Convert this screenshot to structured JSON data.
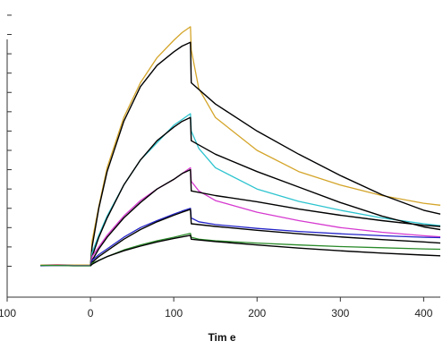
{
  "chart_data": {
    "type": "line",
    "title": "",
    "xlabel": "Tim e",
    "ylabel": "",
    "xlim": [
      -100,
      420
    ],
    "ylim": [
      -8,
      68
    ],
    "x_ticks": [
      -100,
      0,
      100,
      200,
      300,
      400
    ],
    "x_tick_labels": [
      "100",
      "0",
      "100",
      "200",
      "300",
      "400"
    ],
    "y_ticks": [
      0,
      5,
      10,
      15,
      20,
      25,
      30,
      35,
      40,
      45,
      50,
      55,
      60,
      65
    ],
    "grid": false,
    "legend": "none",
    "association_end": 120,
    "series": [
      {
        "color": "#d4a52a",
        "x": [
          -60,
          -40,
          -20,
          0,
          2,
          10,
          20,
          40,
          60,
          80,
          100,
          110,
          120,
          121,
          130,
          150,
          200,
          250,
          300,
          350,
          400,
          420
        ],
        "y": [
          0.3,
          0.4,
          0.3,
          0.3,
          6.5,
          15.5,
          25.5,
          38.5,
          47.5,
          54.0,
          58.5,
          60.5,
          62.0,
          56.0,
          46.0,
          38.5,
          30.0,
          24.5,
          21.0,
          18.3,
          16.3,
          15.8
        ]
      },
      {
        "color": "#000000",
        "x": [
          0,
          2,
          10,
          20,
          40,
          60,
          80,
          100,
          110,
          120,
          121,
          150,
          200,
          250,
          300,
          350,
          400,
          420
        ],
        "y": [
          0.3,
          5.0,
          15.0,
          24.5,
          37.5,
          46.5,
          52.0,
          55.5,
          57.0,
          58.0,
          47.5,
          42.0,
          35.0,
          29.0,
          23.5,
          18.5,
          14.5,
          13.5
        ]
      },
      {
        "color": "#2ec4cf",
        "x": [
          -60,
          -40,
          -20,
          0,
          2,
          10,
          20,
          40,
          60,
          80,
          100,
          110,
          120,
          121,
          130,
          150,
          200,
          250,
          300,
          350,
          400,
          420
        ],
        "y": [
          0.2,
          0.3,
          0.2,
          0.2,
          3.5,
          8.0,
          13.0,
          21.0,
          27.5,
          32.0,
          36.5,
          38.0,
          39.5,
          35.0,
          30.5,
          25.5,
          20.0,
          16.8,
          14.5,
          12.5,
          11.0,
          10.5
        ]
      },
      {
        "color": "#000000",
        "x": [
          0,
          2,
          10,
          20,
          40,
          60,
          80,
          100,
          110,
          120,
          121,
          150,
          200,
          250,
          300,
          350,
          400,
          420
        ],
        "y": [
          0.2,
          2.5,
          7.5,
          12.5,
          21.0,
          27.5,
          32.5,
          36.0,
          37.5,
          38.5,
          32.5,
          29.0,
          24.5,
          20.5,
          16.5,
          13.0,
          10.2,
          9.5
        ]
      },
      {
        "color": "#d63ad0",
        "x": [
          -60,
          -40,
          -20,
          0,
          2,
          10,
          20,
          40,
          60,
          80,
          100,
          110,
          120,
          121,
          130,
          150,
          200,
          250,
          300,
          350,
          400,
          420
        ],
        "y": [
          0.2,
          0.3,
          0.2,
          0.2,
          2.5,
          5.0,
          8.0,
          13.0,
          17.0,
          20.0,
          22.5,
          24.0,
          25.5,
          22.0,
          19.5,
          17.0,
          14.0,
          11.8,
          10.0,
          8.8,
          7.9,
          7.6
        ]
      },
      {
        "color": "#000000",
        "x": [
          0,
          2,
          10,
          20,
          40,
          60,
          80,
          100,
          110,
          120,
          121,
          150,
          200,
          250,
          300,
          350,
          400,
          420
        ],
        "y": [
          0.2,
          1.5,
          4.5,
          7.5,
          12.5,
          16.5,
          20.0,
          22.5,
          24.0,
          25.0,
          19.5,
          18.3,
          16.7,
          14.8,
          13.2,
          11.8,
          10.6,
          10.3
        ]
      },
      {
        "color": "#2424c8",
        "x": [
          -60,
          -40,
          -20,
          0,
          2,
          10,
          20,
          40,
          60,
          80,
          100,
          110,
          120,
          121,
          130,
          150,
          200,
          250,
          300,
          350,
          400,
          420
        ],
        "y": [
          0.1,
          0.2,
          0.1,
          0.1,
          1.5,
          3.0,
          4.5,
          7.5,
          10.0,
          11.8,
          13.5,
          14.3,
          15.0,
          12.5,
          11.5,
          10.8,
          9.8,
          9.0,
          8.4,
          7.9,
          7.5,
          7.4
        ]
      },
      {
        "color": "#000000",
        "x": [
          0,
          2,
          10,
          20,
          40,
          60,
          80,
          100,
          110,
          120,
          121,
          150,
          200,
          250,
          300,
          350,
          400,
          420
        ],
        "y": [
          0.1,
          1.0,
          2.5,
          4.0,
          7.0,
          9.5,
          11.5,
          13.2,
          14.0,
          14.7,
          11.0,
          10.3,
          9.3,
          8.4,
          7.6,
          6.9,
          6.3,
          6.0
        ]
      },
      {
        "color": "#2a8a2a",
        "x": [
          -60,
          -40,
          -20,
          0,
          2,
          10,
          20,
          40,
          60,
          80,
          100,
          110,
          120,
          121,
          130,
          150,
          200,
          250,
          300,
          350,
          400,
          420
        ],
        "y": [
          0.2,
          0.2,
          0.1,
          0.1,
          0.8,
          1.5,
          2.5,
          4.2,
          5.5,
          6.6,
          7.5,
          8.0,
          8.5,
          7.5,
          7.0,
          6.6,
          6.0,
          5.5,
          5.1,
          4.8,
          4.5,
          4.4
        ]
      },
      {
        "color": "#000000",
        "x": [
          0,
          2,
          10,
          20,
          40,
          60,
          80,
          100,
          110,
          120,
          121,
          150,
          200,
          250,
          300,
          350,
          400,
          420
        ],
        "y": [
          0.1,
          0.5,
          1.5,
          2.5,
          4.0,
          5.2,
          6.3,
          7.2,
          7.6,
          8.0,
          7.0,
          6.4,
          5.5,
          4.7,
          4.0,
          3.4,
          2.9,
          2.7
        ]
      }
    ]
  }
}
